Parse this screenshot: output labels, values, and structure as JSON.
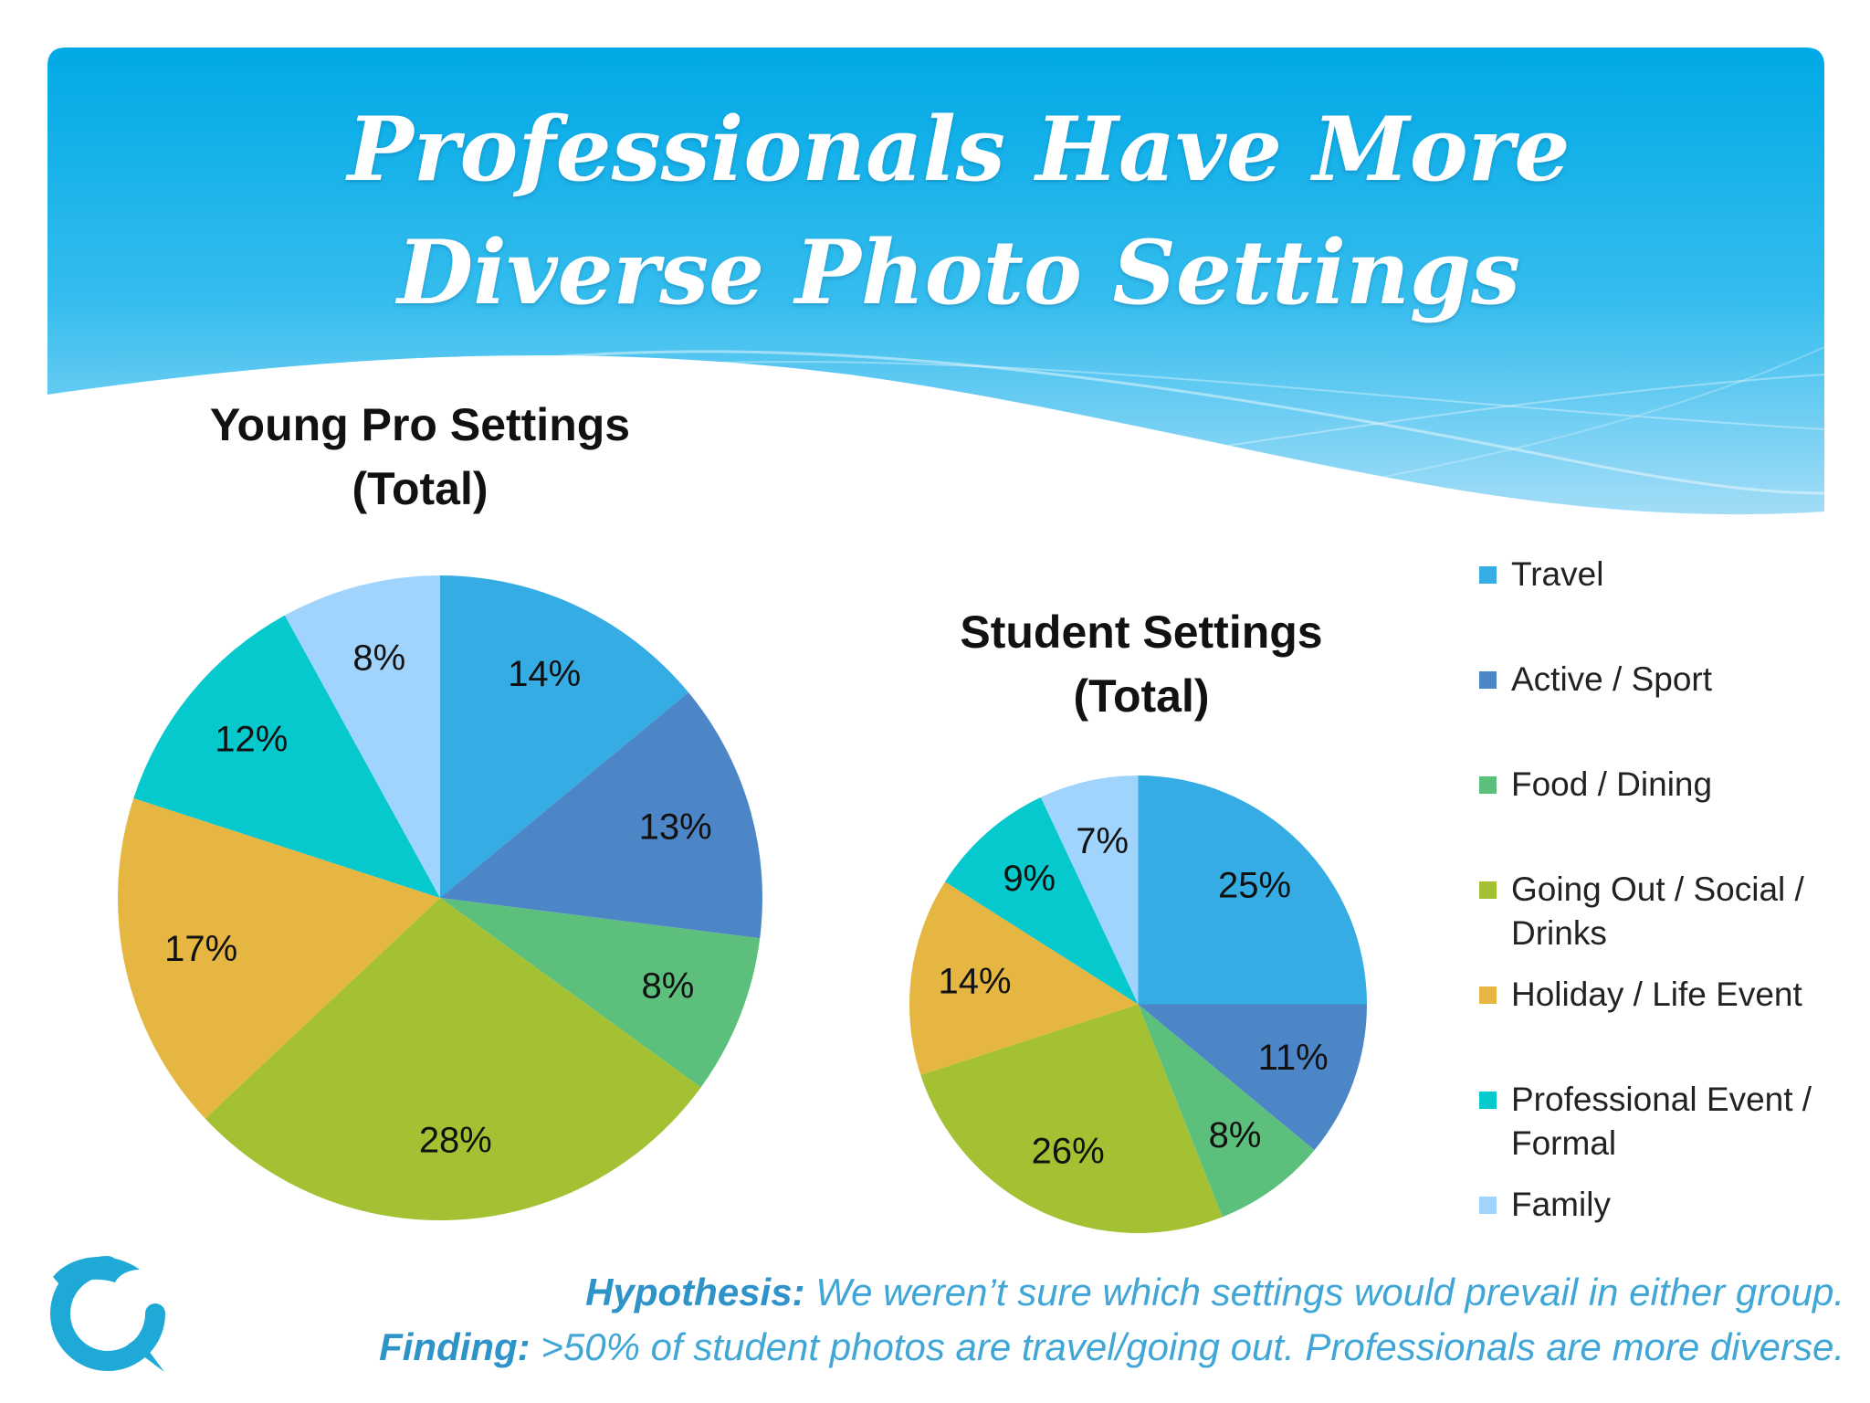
{
  "slide": {
    "title_line1": "Professionals Have More",
    "title_line2": "Diverse Photo Settings",
    "colors": {
      "header_top": "#00a9e6",
      "header_bottom": "#8fd6f5",
      "footer_text": "#3fa6d6"
    }
  },
  "legend": {
    "items": [
      {
        "label": "Travel",
        "color": "#35ade4"
      },
      {
        "label": "Active / Sport",
        "color": "#4c86c7"
      },
      {
        "label": "Food / Dining",
        "color": "#5dbf7c"
      },
      {
        "label": "Going Out / Social / Drinks",
        "color": "#a3c132"
      },
      {
        "label": "Holiday / Life Event",
        "color": "#e5b641"
      },
      {
        "label": "Professional Event / Formal",
        "color": "#05c9cd"
      },
      {
        "label": "Family",
        "color": "#a0d4fd"
      }
    ]
  },
  "chart_data": [
    {
      "type": "pie",
      "title": "Young Pro Settings (Total)",
      "title_line1": "Young Pro Settings",
      "title_line2": "(Total)",
      "categories": [
        "Travel",
        "Active / Sport",
        "Food / Dining",
        "Going Out / Social / Drinks",
        "Holiday / Life Event",
        "Professional Event / Formal",
        "Family"
      ],
      "values": [
        14,
        13,
        8,
        28,
        17,
        12,
        8
      ],
      "labels": [
        "14%",
        "13%",
        "8%",
        "28%",
        "17%",
        "12%",
        "8%"
      ],
      "legend_position": "right"
    },
    {
      "type": "pie",
      "title": "Student Settings (Total)",
      "title_line1": "Student Settings",
      "title_line2": "(Total)",
      "categories": [
        "Travel",
        "Active / Sport",
        "Food / Dining",
        "Going Out / Social / Drinks",
        "Holiday / Life Event",
        "Professional Event / Formal",
        "Family"
      ],
      "values": [
        25,
        11,
        8,
        26,
        14,
        9,
        7
      ],
      "labels": [
        "25%",
        "11%",
        "8%",
        "26%",
        "14%",
        "9%",
        "7%"
      ],
      "legend_position": "right"
    }
  ],
  "footer": {
    "hypothesis_label": "Hypothesis:",
    "hypothesis_text": " We weren’t sure which settings would prevail in either group.",
    "finding_label": "Finding:",
    "finding_text": " >50% of student photos are travel/going out. Professionals are more diverse."
  },
  "logo": {
    "icon": "dolphin-logo-icon",
    "color": "#1fa9d6"
  }
}
